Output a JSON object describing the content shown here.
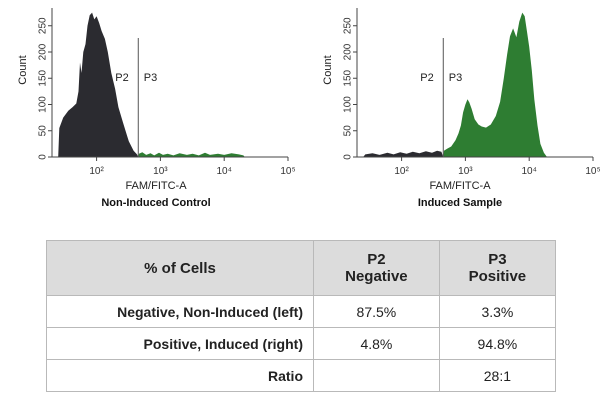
{
  "colors": {
    "negative": "#2b2b30",
    "positive": "#2e7d32",
    "header_bg": "#dcdcdc"
  },
  "chart_data": [
    {
      "type": "area",
      "caption": "Non-Induced Control",
      "xlabel": "FAM/FITC-A",
      "ylabel": "Count",
      "x_scale": "log",
      "xlim": [
        20,
        100000
      ],
      "ylim": [
        0,
        280
      ],
      "x_ticks": [
        {
          "value": 100,
          "label": "10²"
        },
        {
          "value": 1000,
          "label": "10³"
        },
        {
          "value": 10000,
          "label": "10⁴"
        },
        {
          "value": 100000,
          "label": "10⁵"
        }
      ],
      "y_ticks": [
        0,
        50,
        100,
        150,
        200,
        250
      ],
      "gate_x": 450,
      "gates": [
        {
          "name": "P2",
          "x": 250
        },
        {
          "name": "P3",
          "x": 700
        }
      ],
      "series": [
        {
          "color": "#2b2b30",
          "points": [
            [
              25,
              0
            ],
            [
              26,
              55
            ],
            [
              30,
              75
            ],
            [
              36,
              88
            ],
            [
              42,
              95
            ],
            [
              48,
              102
            ],
            [
              52,
              125
            ],
            [
              55,
              180
            ],
            [
              58,
              160
            ],
            [
              62,
              200
            ],
            [
              67,
              215
            ],
            [
              72,
              250
            ],
            [
              78,
              270
            ],
            [
              85,
              275
            ],
            [
              92,
              262
            ],
            [
              100,
              268
            ],
            [
              110,
              255
            ],
            [
              120,
              240
            ],
            [
              135,
              225
            ],
            [
              150,
              200
            ],
            [
              170,
              160
            ],
            [
              195,
              130
            ],
            [
              220,
              95
            ],
            [
              260,
              65
            ],
            [
              320,
              30
            ],
            [
              380,
              12
            ],
            [
              430,
              5
            ],
            [
              450,
              0
            ]
          ]
        },
        {
          "color": "#2e7d32",
          "points": [
            [
              450,
              0
            ],
            [
              460,
              6
            ],
            [
              520,
              9
            ],
            [
              600,
              4
            ],
            [
              700,
              7
            ],
            [
              800,
              3
            ],
            [
              950,
              8
            ],
            [
              1100,
              4
            ],
            [
              1300,
              6
            ],
            [
              1600,
              3
            ],
            [
              2000,
              7
            ],
            [
              2600,
              4
            ],
            [
              3200,
              6
            ],
            [
              4000,
              3
            ],
            [
              5000,
              8
            ],
            [
              6000,
              4
            ],
            [
              8000,
              6
            ],
            [
              10000,
              4
            ],
            [
              13000,
              7
            ],
            [
              17000,
              5
            ],
            [
              20000,
              3
            ],
            [
              21000,
              0
            ]
          ]
        }
      ]
    },
    {
      "type": "area",
      "caption": "Induced Sample",
      "xlabel": "FAM/FITC-A",
      "ylabel": "Count",
      "x_scale": "log",
      "xlim": [
        20,
        100000
      ],
      "ylim": [
        0,
        280
      ],
      "x_ticks": [
        {
          "value": 100,
          "label": "10²"
        },
        {
          "value": 1000,
          "label": "10³"
        },
        {
          "value": 10000,
          "label": "10⁴"
        },
        {
          "value": 100000,
          "label": "10⁵"
        }
      ],
      "y_ticks": [
        0,
        50,
        100,
        150,
        200,
        250
      ],
      "gate_x": 450,
      "gates": [
        {
          "name": "P2",
          "x": 250
        },
        {
          "name": "P3",
          "x": 700
        }
      ],
      "series": [
        {
          "color": "#2b2b30",
          "points": [
            [
              25,
              0
            ],
            [
              27,
              5
            ],
            [
              35,
              7
            ],
            [
              45,
              4
            ],
            [
              60,
              8
            ],
            [
              75,
              5
            ],
            [
              95,
              9
            ],
            [
              120,
              6
            ],
            [
              150,
              10
            ],
            [
              190,
              7
            ],
            [
              240,
              11
            ],
            [
              300,
              8
            ],
            [
              360,
              12
            ],
            [
              420,
              10
            ],
            [
              450,
              0
            ]
          ]
        },
        {
          "color": "#2e7d32",
          "points": [
            [
              450,
              0
            ],
            [
              460,
              12
            ],
            [
              520,
              16
            ],
            [
              600,
              20
            ],
            [
              700,
              32
            ],
            [
              780,
              45
            ],
            [
              850,
              60
            ],
            [
              920,
              85
            ],
            [
              1000,
              100
            ],
            [
              1080,
              110
            ],
            [
              1150,
              104
            ],
            [
              1250,
              92
            ],
            [
              1400,
              72
            ],
            [
              1600,
              62
            ],
            [
              1800,
              58
            ],
            [
              2100,
              56
            ],
            [
              2500,
              62
            ],
            [
              3000,
              78
            ],
            [
              3500,
              105
            ],
            [
              4000,
              150
            ],
            [
              4500,
              195
            ],
            [
              5000,
              230
            ],
            [
              5600,
              245
            ],
            [
              6300,
              228
            ],
            [
              7000,
              258
            ],
            [
              7800,
              275
            ],
            [
              8500,
              268
            ],
            [
              9200,
              240
            ],
            [
              10000,
              210
            ],
            [
              11000,
              165
            ],
            [
              12000,
              110
            ],
            [
              13500,
              60
            ],
            [
              15000,
              25
            ],
            [
              17000,
              8
            ],
            [
              19000,
              0
            ]
          ]
        }
      ]
    }
  ],
  "table": {
    "headers": [
      {
        "line1": "% of Cells",
        "line2": ""
      },
      {
        "line1": "P2",
        "line2": "Negative"
      },
      {
        "line1": "P3",
        "line2": "Positive"
      }
    ],
    "rows": [
      {
        "label": "Negative, Non-Induced (left)",
        "p2": "87.5%",
        "p3": "3.3%"
      },
      {
        "label": "Positive, Induced (right)",
        "p2": "4.8%",
        "p3": "94.8%"
      },
      {
        "label": "Ratio",
        "p2": "",
        "p3": "28:1"
      }
    ]
  }
}
